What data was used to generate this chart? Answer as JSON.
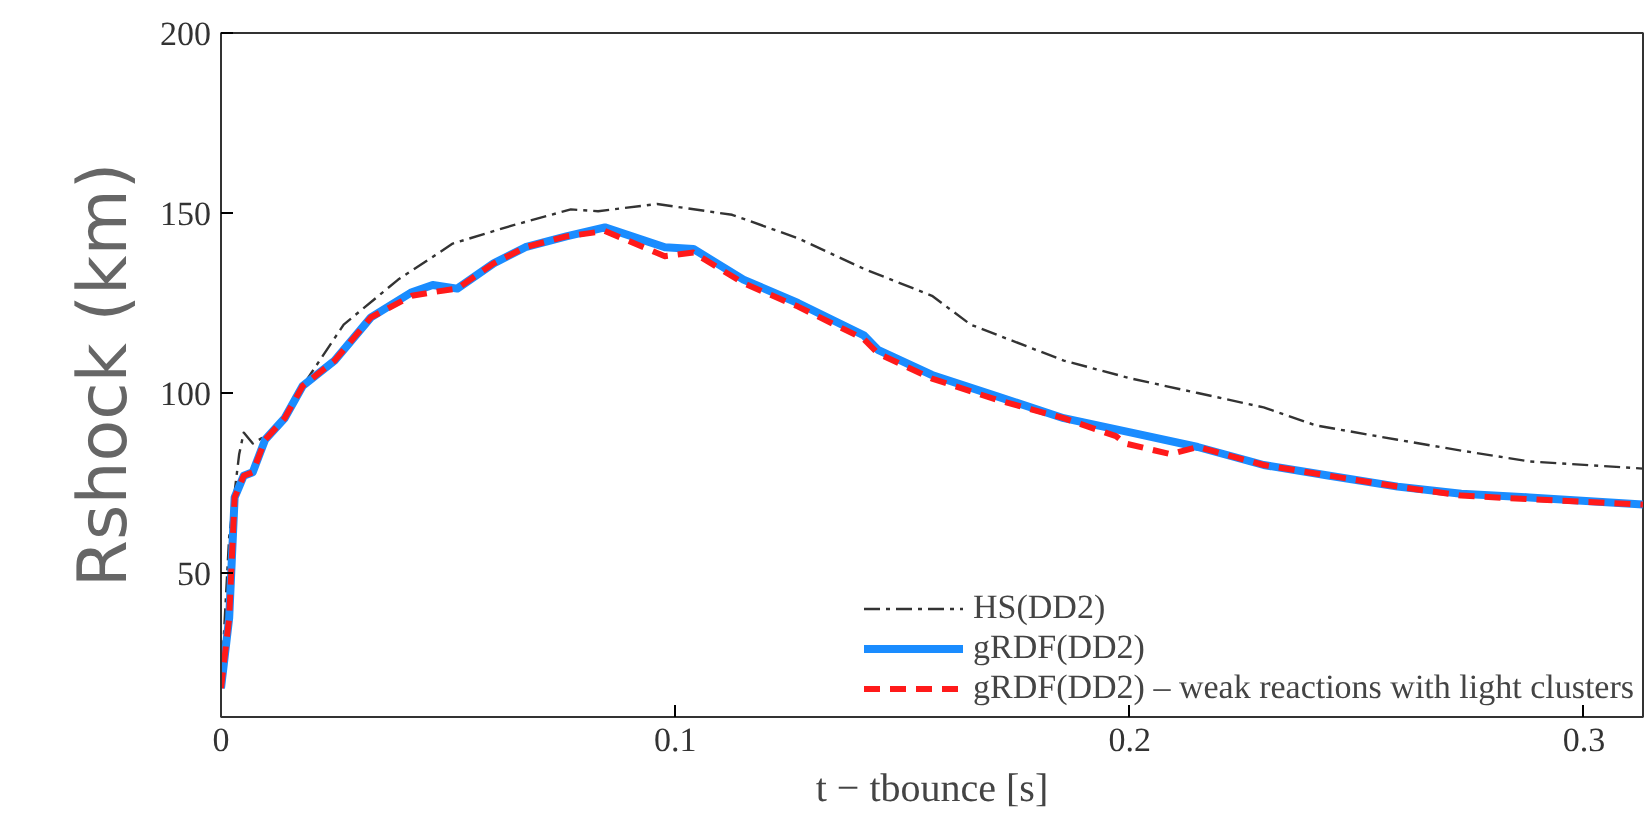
{
  "chart_data": {
    "type": "line",
    "xlabel": "t − tbounce [s]",
    "ylabel": "Rshock (km)",
    "xlim": [
      0,
      0.313
    ],
    "ylim": [
      10,
      200
    ],
    "xticks": [
      0,
      0.1,
      0.2,
      0.3
    ],
    "yticks": [
      50,
      100,
      150,
      200
    ],
    "grid": false,
    "legend": "bottom right",
    "marker": "none",
    "series": [
      {
        "name": "HS(DD2)",
        "color": "#333333",
        "line_style": "dashdot",
        "x": [
          0,
          0.0018,
          0.004,
          0.005,
          0.007,
          0.0097,
          0.014,
          0.018,
          0.027,
          0.039,
          0.051,
          0.064,
          0.077,
          0.083,
          0.096,
          0.1125,
          0.127,
          0.1415,
          0.1565,
          0.165,
          0.1855,
          0.2004,
          0.215,
          0.2295,
          0.241,
          0.259,
          0.273,
          0.288,
          0.313
        ],
        "values": [
          18,
          60,
          83,
          89,
          86,
          88,
          93,
          102,
          119,
          131.5,
          141.5,
          146.5,
          151,
          150.5,
          152.5,
          149.5,
          143,
          134.5,
          127,
          119,
          109,
          104,
          100,
          96,
          91,
          87,
          84,
          81,
          79
        ]
      },
      {
        "name": "gRDF(DD2)",
        "color": "#1a8cff",
        "line_style": "solid",
        "x": [
          0,
          0.0018,
          0.003,
          0.005,
          0.007,
          0.0097,
          0.014,
          0.018,
          0.025,
          0.033,
          0.042,
          0.0466,
          0.052,
          0.06,
          0.067,
          0.076,
          0.0845,
          0.0977,
          0.104,
          0.115,
          0.127,
          0.1415,
          0.1446,
          0.1565,
          0.171,
          0.1855,
          0.2004,
          0.215,
          0.2295,
          0.244,
          0.259,
          0.273,
          0.288,
          0.313
        ],
        "values": [
          18,
          37.5,
          71,
          77,
          78,
          87,
          93,
          102,
          109,
          121,
          128,
          130,
          129,
          136,
          140.5,
          143.5,
          146,
          140.5,
          140,
          131.5,
          125,
          116,
          112,
          105,
          99,
          93,
          89,
          85,
          80,
          77,
          74,
          72,
          71,
          69
        ]
      },
      {
        "name": "gRDF(DD2) – weak reactions with light clusters",
        "color": "#ff1a1a",
        "line_style": "dashed",
        "x": [
          0,
          0.0018,
          0.003,
          0.005,
          0.007,
          0.0097,
          0.014,
          0.018,
          0.025,
          0.033,
          0.042,
          0.0466,
          0.052,
          0.06,
          0.067,
          0.076,
          0.0845,
          0.0977,
          0.104,
          0.115,
          0.127,
          0.1415,
          0.1446,
          0.1565,
          0.171,
          0.1855,
          0.197,
          0.199,
          0.209,
          0.215,
          0.2295,
          0.244,
          0.259,
          0.273,
          0.288,
          0.313
        ],
        "values": [
          18,
          37.5,
          71,
          77,
          78,
          87,
          93,
          102,
          109,
          121,
          127,
          128,
          129,
          136,
          140.5,
          143.5,
          145,
          138,
          139,
          130.5,
          124,
          115,
          111,
          104,
          98,
          93,
          88,
          86,
          83,
          85,
          80,
          77,
          74,
          71.5,
          70.5,
          69
        ]
      }
    ]
  }
}
